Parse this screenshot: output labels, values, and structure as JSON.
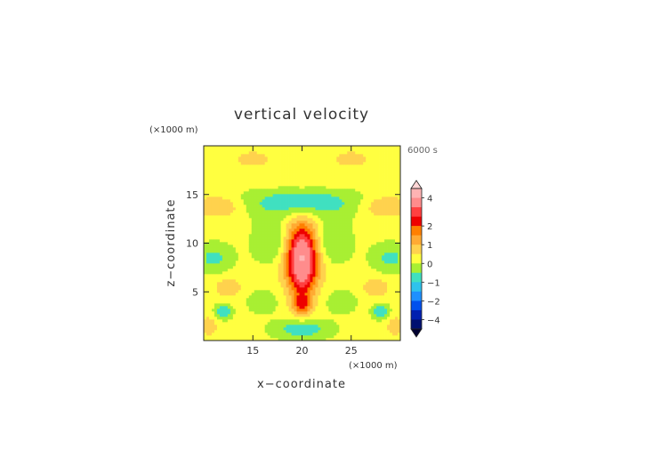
{
  "chart_data": {
    "type": "heatmap",
    "title": "vertical velocity",
    "time_label": "6000 s",
    "xlabel": "x−coordinate",
    "ylabel": "z−coordinate",
    "x_unit": "(×1000 m)",
    "y_unit": "(×1000 m)",
    "xlim": [
      10,
      30
    ],
    "ylim": [
      0,
      20
    ],
    "x_ticks": [
      15,
      20,
      25
    ],
    "y_ticks": [
      5,
      10,
      15
    ],
    "x_tick_labels": [
      "15",
      "20",
      "25"
    ],
    "y_tick_labels": [
      "5",
      "10",
      "15"
    ],
    "colorbar": {
      "labels": [
        {
          "value": 4,
          "text": "4"
        },
        {
          "value": 2,
          "text": "2"
        },
        {
          "value": 1,
          "text": "1"
        },
        {
          "value": 0,
          "text": "0"
        },
        {
          "value": -1,
          "text": "−1"
        },
        {
          "value": -2,
          "text": "−2"
        },
        {
          "value": -4,
          "text": "−4"
        }
      ],
      "levels": [
        {
          "from": 4,
          "to": 5,
          "color": "#ffb3b3"
        },
        {
          "from": 3,
          "to": 4,
          "color": "#ff8c8c"
        },
        {
          "from": 2.5,
          "to": 3,
          "color": "#ff4040"
        },
        {
          "from": 2,
          "to": 2.5,
          "color": "#ee0000"
        },
        {
          "from": 1.5,
          "to": 2,
          "color": "#ff7f00"
        },
        {
          "from": 1,
          "to": 1.5,
          "color": "#ffaa33"
        },
        {
          "from": 0.5,
          "to": 1,
          "color": "#ffd24d"
        },
        {
          "from": 0,
          "to": 0.5,
          "color": "#ffff40"
        },
        {
          "from": -0.5,
          "to": 0,
          "color": "#a8ef33"
        },
        {
          "from": -1,
          "to": -0.5,
          "color": "#40e0c0"
        },
        {
          "from": -1.5,
          "to": -1,
          "color": "#2ec3ec"
        },
        {
          "from": -2,
          "to": -1.5,
          "color": "#1e90ff"
        },
        {
          "from": -3,
          "to": -2,
          "color": "#0050ee"
        },
        {
          "from": -4,
          "to": -3,
          "color": "#0020b0"
        },
        {
          "from": -5,
          "to": -4,
          "color": "#001070"
        }
      ]
    },
    "field": [
      {
        "x": 20,
        "z": 8.8,
        "sx": 1.2,
        "sz": 2.3,
        "amp": 4.2
      },
      {
        "x": 20,
        "z": 3.8,
        "sx": 0.75,
        "sz": 0.9,
        "amp": 1.8
      },
      {
        "x": 20,
        "z": 6.2,
        "sx": 0.9,
        "sz": 0.8,
        "amp": 0.7
      },
      {
        "x": 20,
        "z": 14.2,
        "sx": 4.5,
        "sz": 1.1,
        "amp": -1.1
      },
      {
        "x": 20,
        "z": 1.2,
        "sx": 2.0,
        "sz": 0.7,
        "amp": -1.0
      },
      {
        "x": 17.5,
        "z": 10.0,
        "sx": 1.6,
        "sz": 1.4,
        "amp": -0.8
      },
      {
        "x": 22.5,
        "z": 10.0,
        "sx": 1.6,
        "sz": 1.4,
        "amp": -0.8
      },
      {
        "x": 11.0,
        "z": 8.5,
        "sx": 1.3,
        "sz": 1.0,
        "amp": -0.8
      },
      {
        "x": 29.0,
        "z": 8.5,
        "sx": 1.3,
        "sz": 1.0,
        "amp": -0.8
      },
      {
        "x": 11.5,
        "z": 13.8,
        "sx": 1.8,
        "sz": 0.8,
        "amp": 1.0
      },
      {
        "x": 28.5,
        "z": 13.8,
        "sx": 1.8,
        "sz": 0.8,
        "amp": 1.0
      },
      {
        "x": 15.0,
        "z": 18.7,
        "sx": 1.2,
        "sz": 0.5,
        "amp": 0.8
      },
      {
        "x": 25.0,
        "z": 18.7,
        "sx": 1.2,
        "sz": 0.5,
        "amp": 0.8
      },
      {
        "x": 12.5,
        "z": 5.5,
        "sx": 1.0,
        "sz": 0.7,
        "amp": 0.8
      },
      {
        "x": 27.5,
        "z": 5.5,
        "sx": 1.0,
        "sz": 0.7,
        "amp": 0.8
      },
      {
        "x": 16.0,
        "z": 4.0,
        "sx": 1.0,
        "sz": 0.8,
        "amp": -0.6
      },
      {
        "x": 24.0,
        "z": 4.0,
        "sx": 1.0,
        "sz": 0.8,
        "amp": -0.6
      },
      {
        "x": 12.0,
        "z": 3.0,
        "sx": 0.6,
        "sz": 0.5,
        "amp": -1.1
      },
      {
        "x": 28.0,
        "z": 3.0,
        "sx": 0.6,
        "sz": 0.5,
        "amp": -1.1
      },
      {
        "x": 10.5,
        "z": 1.5,
        "sx": 0.6,
        "sz": 0.7,
        "amp": 0.8
      },
      {
        "x": 29.5,
        "z": 1.5,
        "sx": 0.6,
        "sz": 0.7,
        "amp": 0.8
      },
      {
        "x": 20,
        "z": 16.5,
        "sx": 6.0,
        "sz": 0.9,
        "amp": 0.3
      }
    ],
    "field_background": 0.15
  }
}
